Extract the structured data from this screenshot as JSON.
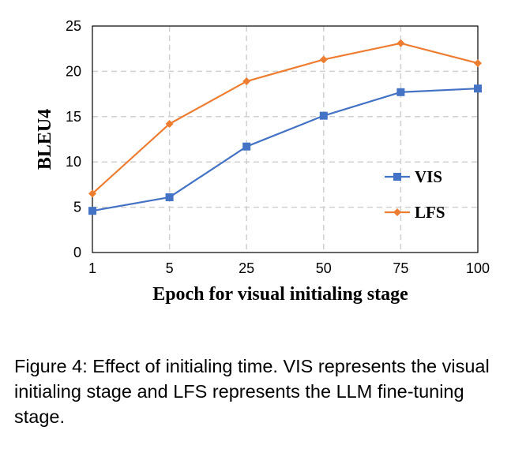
{
  "chart_data": {
    "type": "line",
    "categories": [
      "1",
      "5",
      "25",
      "50",
      "75",
      "100"
    ],
    "series": [
      {
        "name": "VIS",
        "color": "#4472C4",
        "marker": "square",
        "values": [
          4.6,
          6.1,
          11.7,
          15.1,
          17.7,
          18.1
        ]
      },
      {
        "name": "LFS",
        "color": "#ED7D31",
        "marker": "diamond",
        "values": [
          6.5,
          14.2,
          18.9,
          21.3,
          23.1,
          20.9
        ]
      }
    ],
    "xlabel": "Epoch for visual initialing stage",
    "ylabel": "BLEU4",
    "ylim": [
      0,
      25
    ],
    "yticks": [
      "0",
      "5",
      "10",
      "15",
      "20",
      "25"
    ],
    "grid": true,
    "legend_position": "center-right"
  },
  "caption": "Figure 4: Effect of initialing time. VIS represents the visual initialing stage and LFS represents the LLM fine-tuning stage."
}
